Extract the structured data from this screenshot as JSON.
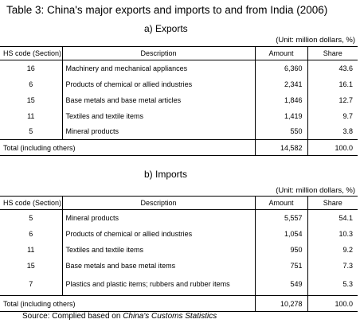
{
  "title": "Table 3: China's major exports and imports to and from India (2006)",
  "exports": {
    "subtitle": "a) Exports",
    "unit": "(Unit: million dollars, %)",
    "headers": [
      "HS code (Section)",
      "Description",
      "Amount",
      "Share"
    ],
    "rows": [
      {
        "code": "16",
        "description": "Machinery and mechanical appliances",
        "amount": "6,360",
        "share": "43.6"
      },
      {
        "code": "6",
        "description": "Products of chemical or allied industries",
        "amount": "2,341",
        "share": "16.1"
      },
      {
        "code": "15",
        "description": "Base metals and base metal articles",
        "amount": "1,846",
        "share": "12.7"
      },
      {
        "code": "11",
        "description": "Textiles and textile items",
        "amount": "1,419",
        "share": "9.7"
      },
      {
        "code": "5",
        "description": "Mineral products",
        "amount": "550",
        "share": "3.8"
      }
    ],
    "total": {
      "label": "Total (including others)",
      "amount": "14,582",
      "share": "100.0"
    }
  },
  "imports": {
    "subtitle": "b) Imports",
    "unit": "(Unit: million dollars, %)",
    "headers": [
      "HS code (Section)",
      "Description",
      "Amount",
      "Share"
    ],
    "rows": [
      {
        "code": "5",
        "description": "Mineral products",
        "amount": "5,557",
        "share": "54.1"
      },
      {
        "code": "6",
        "description": "Products of chemical or allied industries",
        "amount": "1,054",
        "share": "10.3"
      },
      {
        "code": "11",
        "description": "Textiles and textile items",
        "amount": "950",
        "share": "9.2"
      },
      {
        "code": "15",
        "description": "Base metals and base metal items",
        "amount": "751",
        "share": "7.3"
      },
      {
        "code": "7",
        "description": "Plastics and plastic items; rubbers and rubber items",
        "amount": "549",
        "share": "5.3"
      }
    ],
    "total": {
      "label": "Total (including others)",
      "amount": "10,278",
      "share": "100.0"
    }
  },
  "source": {
    "prefix": "Source: Complied based on ",
    "publication": "China's Customs Statistics"
  }
}
